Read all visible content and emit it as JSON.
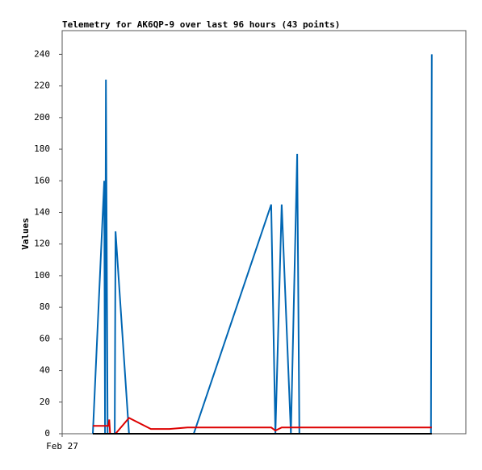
{
  "chart_data": {
    "type": "line",
    "title": "Telemetry for AK6QP-9 over last 96 hours (43 points)",
    "y_label": "Values",
    "xlim": [
      0,
      96
    ],
    "xticks": [
      {
        "value": 0,
        "label": "Feb 27"
      }
    ],
    "ylim": [
      0,
      255
    ],
    "yticks": [
      0,
      20,
      40,
      60,
      80,
      100,
      120,
      140,
      160,
      180,
      200,
      220,
      240
    ],
    "series": [
      {
        "color": "#0066b3",
        "x": [
          7.3,
          10.0,
          10.2,
          10.4,
          10.8,
          12.5,
          12.7,
          15.9,
          31.3,
          49.7,
          50.7,
          52.2,
          54.4,
          55.9,
          56.4,
          87.7,
          87.9
        ],
        "values": [
          0,
          160,
          0,
          224,
          0,
          0,
          128,
          0,
          0,
          145,
          0,
          145,
          0,
          177,
          0,
          0,
          240
        ]
      },
      {
        "color": "#dd0000",
        "x": [
          7.3,
          9.8,
          11.0,
          11.2,
          11.4,
          12.7,
          15.9,
          21.1,
          25.5,
          29.8,
          49.7,
          50.7,
          52.2,
          87.9
        ],
        "values": [
          5,
          5,
          5,
          9,
          0,
          0,
          10,
          3,
          3,
          4,
          4,
          2,
          4,
          4
        ]
      },
      {
        "color": "#000000",
        "x": [
          7.3,
          87.9
        ],
        "values": [
          0,
          0
        ]
      }
    ]
  }
}
